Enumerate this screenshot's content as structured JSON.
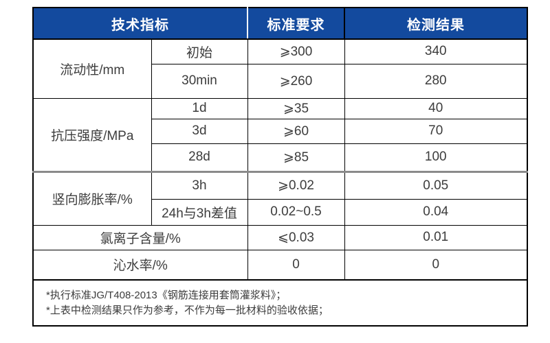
{
  "colors": {
    "header_bg": "#134A9E",
    "header_text": "#FFFFFF",
    "body_text": "#3C3C3C",
    "grid_border": "#000000",
    "section_divider": "#8A8A8A"
  },
  "table": {
    "columns": [
      "技术指标",
      "标准要求",
      "检测结果"
    ],
    "rows": [
      {
        "indicator": "流动性/mm",
        "sub": "初始",
        "standard": "⩾300",
        "result": "340"
      },
      {
        "sub": "30min",
        "standard": "⩾260",
        "result": "280"
      },
      {
        "indicator": "抗压强度/MPa",
        "sub": "1d",
        "standard": "⩾35",
        "result": "40"
      },
      {
        "sub": "3d",
        "standard": "⩾60",
        "result": "70"
      },
      {
        "sub": "28d",
        "standard": "⩾85",
        "result": "100"
      },
      {
        "indicator": "竖向膨胀率/%",
        "sub": "3h",
        "standard": "⩾0.02",
        "result": "0.05"
      },
      {
        "sub": "24h与3h差值",
        "standard": "0.02~0.5",
        "result": "0.04"
      },
      {
        "indicator": "氯离子含量/%",
        "standard": "⩽0.03",
        "result": "0.01"
      },
      {
        "indicator": "沁水率/%",
        "standard": "0",
        "result": "0"
      }
    ],
    "notes": [
      "*执行标准JG/T408-2013《钢筋连接用套筒灌浆料》；",
      "*上表中检测结果只作为参考，不作为每一批材料的验收依据；"
    ]
  }
}
